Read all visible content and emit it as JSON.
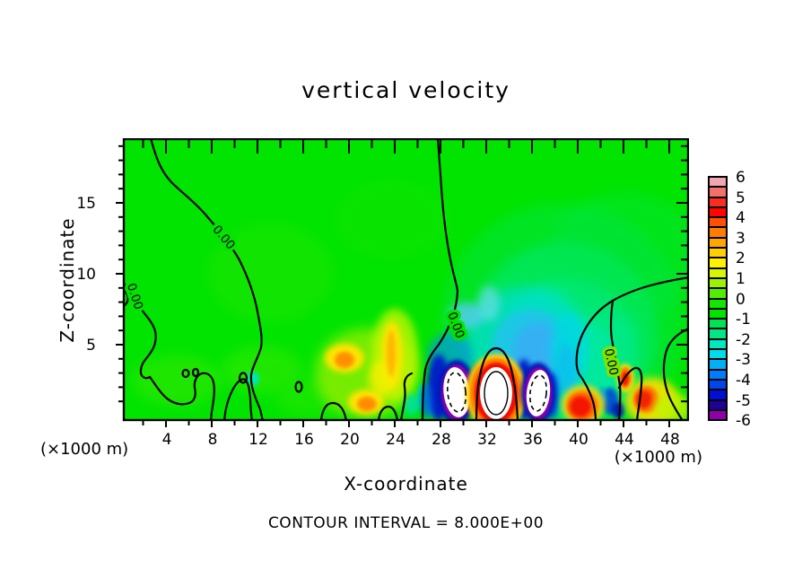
{
  "title": "vertical velocity",
  "xaxis": {
    "label": "X-coordinate",
    "unit_label": "(×1000 m)",
    "tick_values": [
      2,
      4,
      6,
      8,
      10,
      12,
      14,
      16,
      18,
      20,
      22,
      24,
      26,
      28,
      30,
      32,
      34,
      36,
      38,
      40,
      42,
      44,
      46,
      48
    ],
    "labeled_values": [
      4,
      8,
      12,
      16,
      20,
      24,
      28,
      32,
      36,
      40,
      44,
      48
    ]
  },
  "yaxis": {
    "label": "Z-coordinate",
    "unit_label": "(×1000 m)",
    "tick_values": [
      1,
      2,
      3,
      4,
      5,
      6,
      7,
      8,
      9,
      10,
      11,
      12,
      13,
      14,
      15,
      16,
      17,
      18,
      19
    ],
    "labeled_values": [
      5,
      10,
      15
    ]
  },
  "footer": "CONTOUR INTERVAL = 8.000E+00",
  "contour_labels": [
    "0.00",
    "0.00",
    "0.00",
    "0.00"
  ],
  "colorbar": {
    "labels": [
      "6",
      "5",
      "4",
      "3",
      "2",
      "1",
      "0",
      "-1",
      "-2",
      "-3",
      "-4",
      "-5",
      "-6"
    ],
    "cell_colors": [
      "#f1a7b2",
      "#f4716b",
      "#fa2e1f",
      "#ff0400",
      "#fe5000",
      "#ff7e00",
      "#ffa600",
      "#ffcf00",
      "#fdf100",
      "#d8f600",
      "#9df200",
      "#54ec00",
      "#12e700",
      "#00e400",
      "#00e350",
      "#00e786",
      "#00e9c0",
      "#00dcec",
      "#00b0f6",
      "#007cfc",
      "#0046ea",
      "#000fd0",
      "#21009a",
      "#8e00a8"
    ]
  },
  "chart_data": {
    "type": "heatmap",
    "subtype": "filled-contour-with-line-contours",
    "title": "vertical velocity",
    "xlabel": "X-coordinate",
    "ylabel": "Z-coordinate",
    "x_units": "(×1000 m)",
    "y_units": "(×1000 m)",
    "x_range": [
      0,
      50
    ],
    "y_range": [
      0,
      20
    ],
    "x_tick_labels": [
      4,
      8,
      12,
      16,
      20,
      24,
      28,
      32,
      36,
      40,
      44,
      48
    ],
    "y_tick_labels": [
      5,
      10,
      15
    ],
    "colorbar_tick_labels": [
      6,
      5,
      4,
      3,
      2,
      1,
      0,
      -1,
      -2,
      -3,
      -4,
      -5,
      -6
    ],
    "line_contour_value_label": "0.00",
    "contour_interval": 8.0,
    "background_field_value_color": "#00e400",
    "notable_features": [
      "zero contour descending diagonally from top edge near x=2.5 to lower left region",
      "zero contour entering left edge near z=9.5 labeled 0.00, meandering along low levels",
      "zero contour descending from top edge near x=27.5, labeled 0.00 near z=7, curving to surface near x=27",
      "strong updraft core near x=32: white (off-scale positive) oval ringed by red and orange with closed dome contour",
      "two off-scale negative white ovals with dashed contours near x=29.5 and x=36.5, ringed purple/dark blue",
      "broad cyan/blue downdraft region x=33-40 below z=7",
      "yellow-orange updraft arc x=19-25 below z=6",
      "orange-red cells near x=39-40, x=44, and x=46 near surface",
      "zero contour entering right edge near z=10 labeled 0.00 near x=43, branching to surface"
    ]
  }
}
